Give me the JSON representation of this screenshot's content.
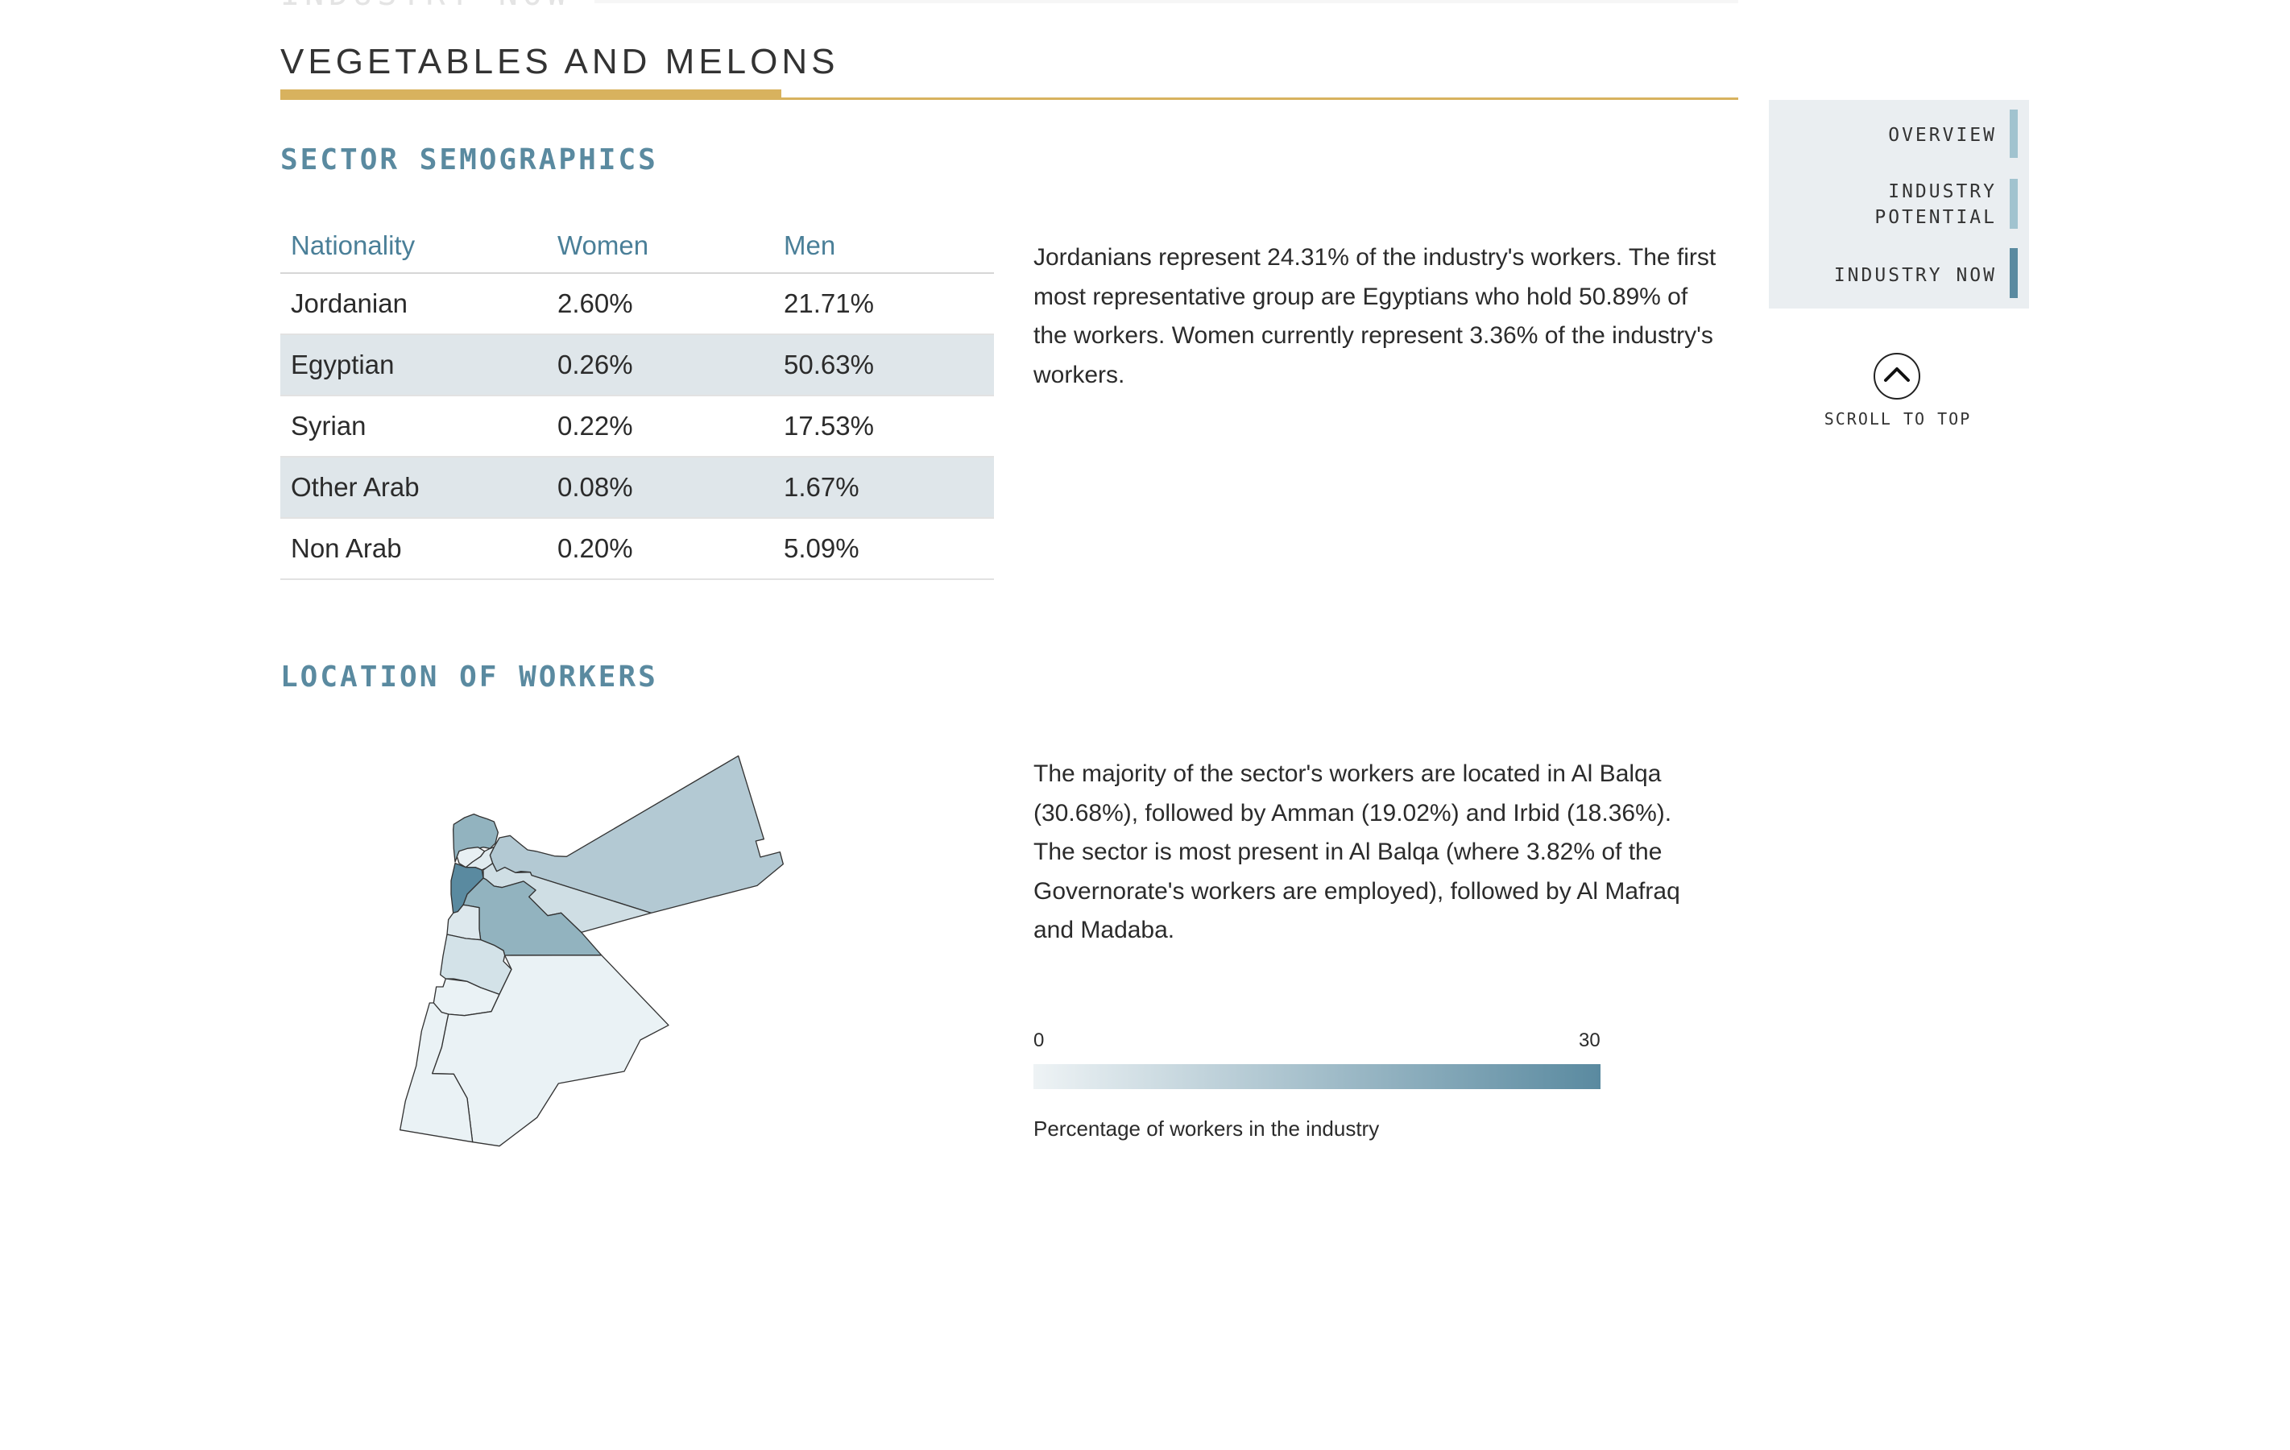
{
  "header": {
    "previous_section": "INDUSTRY NOW",
    "title": "VEGETABLES AND MELONS",
    "accent_color": "#d8b25e"
  },
  "demographics": {
    "heading": "SECTOR SEMOGRAPHICS",
    "columns": [
      "Nationality",
      "Women",
      "Men"
    ],
    "rows": [
      [
        "Jordanian",
        "2.60%",
        "21.71%"
      ],
      [
        "Egyptian",
        "0.26%",
        "50.63%"
      ],
      [
        "Syrian",
        "0.22%",
        "17.53%"
      ],
      [
        "Other Arab",
        "0.08%",
        "1.67%"
      ],
      [
        "Non Arab",
        "0.20%",
        "5.09%"
      ]
    ],
    "summary": "Jordanians represent 24.31% of the industry's workers. The first most representative group are Egyptians who hold 50.89% of the workers. Women currently represent 3.36% of the industry's workers."
  },
  "location": {
    "heading": "LOCATION OF WORKERS",
    "summary": "The majority of the sector's workers are located in Al Balqa (30.68%), followed by Amman (19.02%) and Irbid (18.36%). The sector is most present in Al Balqa (where 3.82% of the Governorate's workers are employed), followed by Al Mafraq and Madaba.",
    "legend": {
      "min": "0",
      "max": "30",
      "caption": "Percentage of workers in the industry",
      "color_low": "#eef3f5",
      "color_high": "#5a8aa0"
    },
    "region_fills": {
      "mafraq": "#b3c9d3",
      "irbid": "#92b3bf",
      "ajloun": "#e8f0f3",
      "jerash": "#e0ebef",
      "balqa": "#5a8aa0",
      "zarqa": "#cfdee4",
      "amman": "#92b3bf",
      "madaba": "#dde8ed",
      "karak": "#d3e2e8",
      "tafilah": "#eaf2f5",
      "maan": "#eaf2f5",
      "aqaba": "#eaf2f5"
    }
  },
  "nav": {
    "items": [
      {
        "label": "OVERVIEW",
        "bar_color": "#a1c3cf"
      },
      {
        "label": "INDUSTRY POTENTIAL",
        "bar_color": "#a1c3cf"
      },
      {
        "label": "INDUSTRY NOW",
        "bar_color": "#5a8aa0",
        "active": true
      }
    ],
    "scroll_top_label": "SCROLL TO TOP",
    "scroll_icon": "chevron-up-icon"
  }
}
